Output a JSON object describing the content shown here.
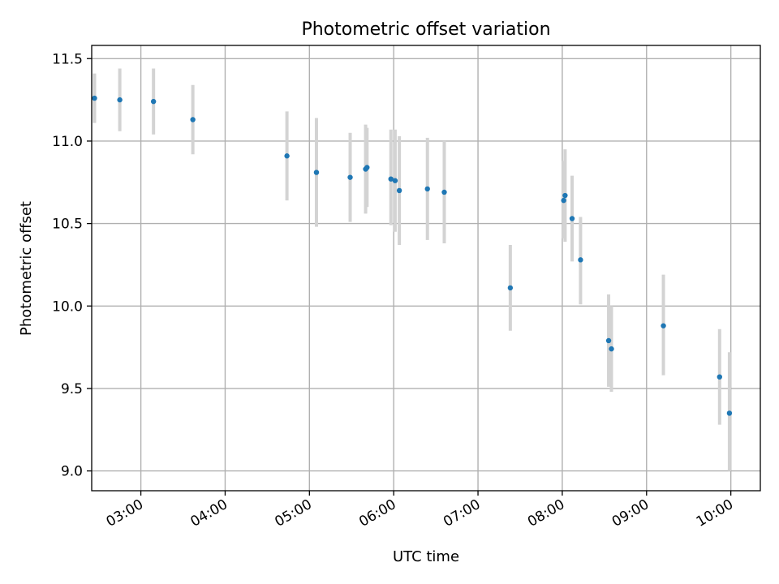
{
  "chart_data": {
    "type": "scatter",
    "title": "Photometric offset variation",
    "xlabel": "UTC time",
    "ylabel": "Photometric offset",
    "xlim": [
      "02:25",
      "10:21"
    ],
    "ylim": [
      8.88,
      11.58
    ],
    "xticks": [
      "03:00",
      "04:00",
      "05:00",
      "06:00",
      "07:00",
      "08:00",
      "09:00",
      "10:00"
    ],
    "yticks": [
      "9.0",
      "9.5",
      "10.0",
      "10.5",
      "11.0",
      "11.5"
    ],
    "grid": true,
    "point_color": "#1f77b4",
    "errorbar_color": "#d3d3d3",
    "points": [
      {
        "x": "02:27",
        "y": 11.26,
        "ylow": 11.11,
        "yhigh": 11.41
      },
      {
        "x": "02:45",
        "y": 11.25,
        "ylow": 11.06,
        "yhigh": 11.44
      },
      {
        "x": "03:09",
        "y": 11.24,
        "ylow": 11.04,
        "yhigh": 11.44
      },
      {
        "x": "03:37",
        "y": 11.13,
        "ylow": 10.92,
        "yhigh": 11.34
      },
      {
        "x": "04:44",
        "y": 10.91,
        "ylow": 10.64,
        "yhigh": 11.18
      },
      {
        "x": "05:05",
        "y": 10.81,
        "ylow": 10.48,
        "yhigh": 11.14
      },
      {
        "x": "05:29",
        "y": 10.78,
        "ylow": 10.51,
        "yhigh": 11.05
      },
      {
        "x": "05:40",
        "y": 10.83,
        "ylow": 10.56,
        "yhigh": 11.1
      },
      {
        "x": "05:41",
        "y": 10.84,
        "ylow": 10.6,
        "yhigh": 11.08
      },
      {
        "x": "05:58",
        "y": 10.77,
        "ylow": 10.49,
        "yhigh": 11.07
      },
      {
        "x": "06:01",
        "y": 10.76,
        "ylow": 10.45,
        "yhigh": 11.07
      },
      {
        "x": "06:04",
        "y": 10.7,
        "ylow": 10.37,
        "yhigh": 11.03
      },
      {
        "x": "06:24",
        "y": 10.71,
        "ylow": 10.4,
        "yhigh": 11.02
      },
      {
        "x": "06:36",
        "y": 10.69,
        "ylow": 10.38,
        "yhigh": 11.0
      },
      {
        "x": "07:23",
        "y": 10.11,
        "ylow": 9.85,
        "yhigh": 10.37
      },
      {
        "x": "08:01",
        "y": 10.64,
        "ylow": 10.41,
        "yhigh": 10.88
      },
      {
        "x": "08:02",
        "y": 10.67,
        "ylow": 10.39,
        "yhigh": 10.95
      },
      {
        "x": "08:07",
        "y": 10.53,
        "ylow": 10.27,
        "yhigh": 10.79
      },
      {
        "x": "08:13",
        "y": 10.28,
        "ylow": 10.01,
        "yhigh": 10.54
      },
      {
        "x": "08:33",
        "y": 9.79,
        "ylow": 9.51,
        "yhigh": 10.07
      },
      {
        "x": "08:35",
        "y": 9.74,
        "ylow": 9.48,
        "yhigh": 10.0
      },
      {
        "x": "09:12",
        "y": 9.88,
        "ylow": 9.58,
        "yhigh": 10.19
      },
      {
        "x": "09:52",
        "y": 9.57,
        "ylow": 9.28,
        "yhigh": 9.86
      },
      {
        "x": "09:59",
        "y": 9.35,
        "ylow": 9.0,
        "yhigh": 9.72
      }
    ]
  }
}
